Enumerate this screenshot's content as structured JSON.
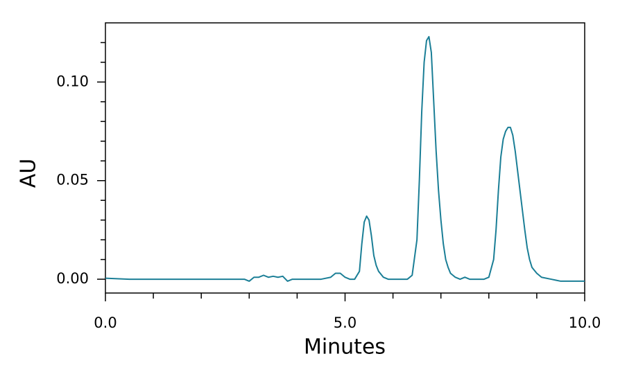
{
  "chart_data": {
    "type": "line",
    "xlabel": "Minutes",
    "ylabel": "AU",
    "xlim": [
      0,
      10
    ],
    "ylim": [
      -0.007,
      0.13
    ],
    "xticks": [
      {
        "value": 0,
        "label": "0.0"
      },
      {
        "value": 5,
        "label": "5.0"
      },
      {
        "value": 10,
        "label": "10.0"
      }
    ],
    "xminorticks": [
      1,
      2,
      3,
      4,
      6,
      7,
      8,
      9
    ],
    "yticks": [
      {
        "value": 0,
        "label": "0.00"
      },
      {
        "value": 0.05,
        "label": "0.05"
      },
      {
        "value": 0.1,
        "label": "0.10"
      }
    ],
    "yminorticks": [
      0.01,
      0.02,
      0.03,
      0.04,
      0.06,
      0.07,
      0.08,
      0.09,
      0.11,
      0.12
    ],
    "series": [
      {
        "color": "#1a7e96",
        "x": [
          0.0,
          0.5,
          1.0,
          1.5,
          2.0,
          2.5,
          2.9,
          3.0,
          3.1,
          3.2,
          3.3,
          3.4,
          3.5,
          3.6,
          3.7,
          3.8,
          3.9,
          4.2,
          4.5,
          4.7,
          4.8,
          4.9,
          5.0,
          5.1,
          5.2,
          5.3,
          5.35,
          5.4,
          5.45,
          5.5,
          5.55,
          5.6,
          5.65,
          5.7,
          5.8,
          5.9,
          6.0,
          6.3,
          6.4,
          6.5,
          6.55,
          6.6,
          6.65,
          6.7,
          6.75,
          6.8,
          6.85,
          6.9,
          6.95,
          7.0,
          7.05,
          7.1,
          7.15,
          7.2,
          7.3,
          7.4,
          7.5,
          7.6,
          7.9,
          8.0,
          8.1,
          8.15,
          8.2,
          8.25,
          8.3,
          8.35,
          8.4,
          8.45,
          8.5,
          8.55,
          8.6,
          8.65,
          8.7,
          8.75,
          8.8,
          8.85,
          8.9,
          9.0,
          9.1,
          9.3,
          9.4,
          9.5,
          10.0
        ],
        "values": [
          0.0005,
          0,
          0,
          0,
          0,
          0,
          0,
          -0.001,
          0.001,
          0.001,
          0.002,
          0.001,
          0.0015,
          0.001,
          0.0015,
          -0.001,
          0,
          0,
          0,
          0.001,
          0.003,
          0.003,
          0.001,
          0,
          0,
          0.004,
          0.018,
          0.029,
          0.032,
          0.03,
          0.022,
          0.012,
          0.007,
          0.004,
          0.001,
          0,
          0,
          0,
          0.002,
          0.02,
          0.05,
          0.085,
          0.11,
          0.121,
          0.123,
          0.115,
          0.09,
          0.065,
          0.045,
          0.03,
          0.018,
          0.01,
          0.006,
          0.003,
          0.001,
          0,
          0.001,
          0,
          0,
          0.001,
          0.01,
          0.025,
          0.045,
          0.062,
          0.071,
          0.075,
          0.077,
          0.077,
          0.073,
          0.065,
          0.055,
          0.045,
          0.035,
          0.025,
          0.016,
          0.01,
          0.006,
          0.003,
          0.001,
          0,
          -0.0005,
          -0.001,
          -0.001
        ]
      }
    ]
  }
}
